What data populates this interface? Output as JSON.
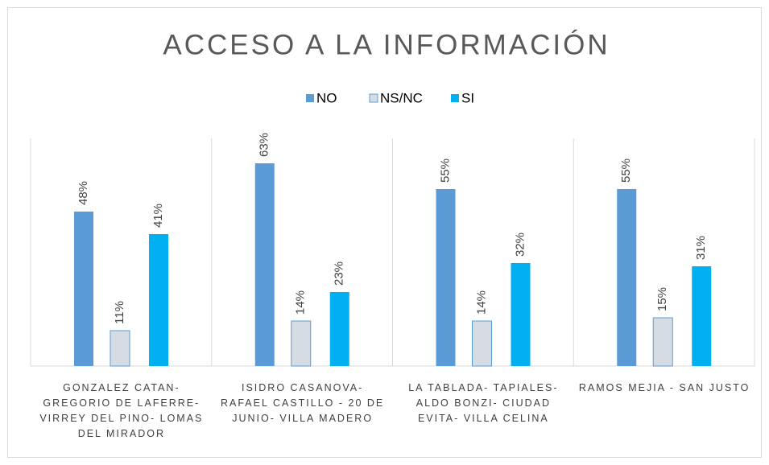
{
  "chart_data": {
    "type": "bar",
    "title": "ACCESO A LA INFORMACIÓN",
    "categories": [
      "GONZALEZ CATAN- GREGORIO DE LAFERRE- VIRREY DEL PINO- LOMAS DEL MIRADOR",
      "ISIDRO CASANOVA- RAFAEL CASTILLO - 20 DE JUNIO- VILLA MADERO",
      "LA TABLADA- TAPIALES- ALDO BONZI- CIUDAD EVITA- VILLA CELINA",
      "RAMOS MEJIA - SAN JUSTO"
    ],
    "series": [
      {
        "name": "NO",
        "color": "#5b9bd5",
        "values": [
          48,
          63,
          55,
          55
        ],
        "value_labels": [
          "48%",
          "63%",
          "55%",
          "55%"
        ]
      },
      {
        "name": "NS/NC",
        "color": "#d6dce4",
        "values": [
          11,
          14,
          14,
          15
        ],
        "value_labels": [
          "11%",
          "14%",
          "14%",
          "15%"
        ]
      },
      {
        "name": "SI",
        "color": "#00b0f0",
        "values": [
          41,
          23,
          32,
          31
        ],
        "value_labels": [
          "41%",
          "23%",
          "32%",
          "31%"
        ]
      }
    ],
    "legend": "top"
  }
}
